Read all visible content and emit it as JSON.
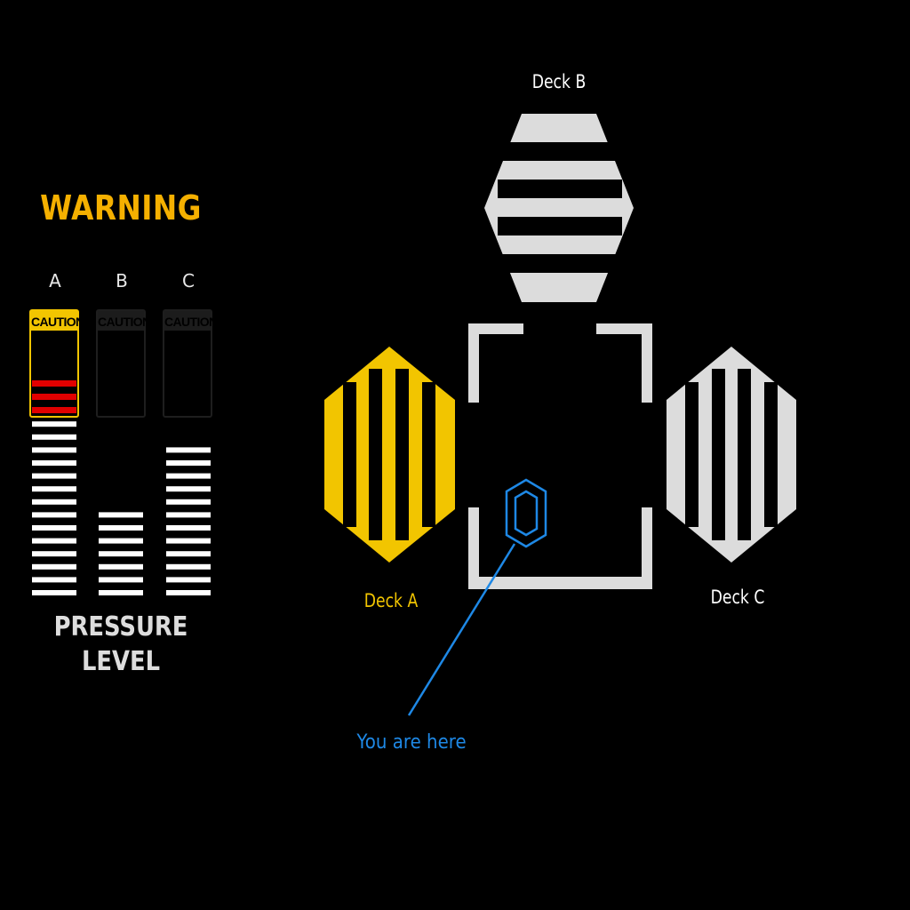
{
  "warning": {
    "title": "WARNING",
    "color": "#f5b000"
  },
  "gauges": {
    "caution_label": "CAUTION",
    "footer_line1": "PRESSURE",
    "footer_line2": "LEVEL",
    "columns": [
      {
        "label": "A",
        "caution_active": true,
        "level_bars": 14,
        "red_bars": 3
      },
      {
        "label": "B",
        "caution_active": false,
        "level_bars": 7,
        "red_bars": 0
      },
      {
        "label": "C",
        "caution_active": false,
        "level_bars": 12,
        "red_bars": 0
      }
    ],
    "colors": {
      "active": "#f2c500",
      "bar": "#ffffff",
      "alert_bar": "#e10000",
      "inactive": "#1e1e1e"
    }
  },
  "map": {
    "decks": [
      {
        "id": "A",
        "label": "Deck A",
        "color": "#f2c500",
        "highlighted": true
      },
      {
        "id": "B",
        "label": "Deck B",
        "color": "#dcdcdc",
        "highlighted": false
      },
      {
        "id": "C",
        "label": "Deck C",
        "color": "#dcdcdc",
        "highlighted": false
      }
    ],
    "marker": {
      "label": "You are here",
      "color": "#1e88e5",
      "icon": "hexagon-location-icon"
    },
    "center_room_color": "#dcdcdc"
  }
}
